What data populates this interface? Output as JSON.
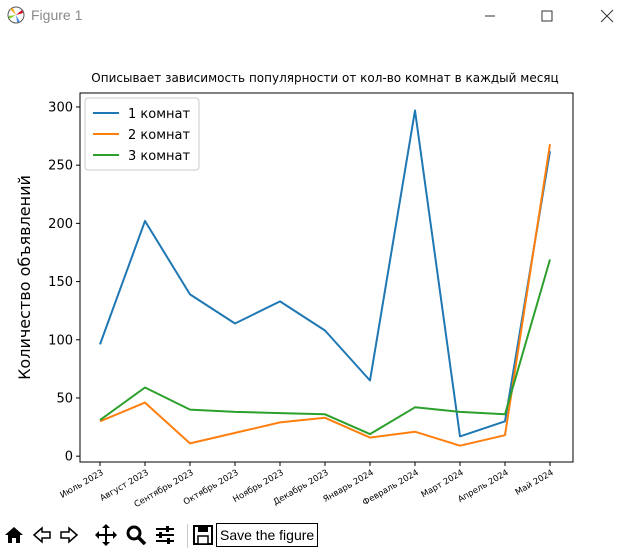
{
  "window": {
    "title": "Figure 1"
  },
  "toolbar": {
    "icons": [
      "home-icon",
      "back-arrow-icon",
      "forward-arrow-icon",
      "pan-icon",
      "zoom-icon",
      "subplots-icon",
      "save-icon"
    ],
    "message": "Save the figure"
  },
  "chart_data": {
    "type": "line",
    "title": "Описывает зависимость популярности от кол-во комнат в каждый месяц",
    "xlabel": "",
    "ylabel": "Количество объявлений",
    "categories": [
      "Июль 2023",
      "Август 2023",
      "Сентябрь 2023",
      "Октябрь 2023",
      "Ноябрь 2023",
      "Декабрь 2023",
      "Январь 2024",
      "Февраль 2024",
      "Март 2024",
      "Апрель 2024",
      "Май 2024"
    ],
    "ylim": [
      -5,
      312
    ],
    "yticks": [
      0,
      50,
      100,
      150,
      200,
      250,
      300
    ],
    "grid": false,
    "legend_position": "top-left",
    "series": [
      {
        "name": "1 комнат",
        "color": "#1f77b4",
        "values": [
          96,
          202,
          139,
          114,
          133,
          108,
          65,
          297,
          17,
          30,
          262
        ]
      },
      {
        "name": "2 комнат",
        "color": "#ff7f0e",
        "values": [
          30,
          46,
          11,
          20,
          29,
          33,
          16,
          21,
          9,
          18,
          268
        ]
      },
      {
        "name": "3 комнат",
        "color": "#2ca02c",
        "values": [
          31,
          59,
          40,
          38,
          37,
          36,
          19,
          42,
          38,
          36,
          169
        ]
      }
    ]
  }
}
